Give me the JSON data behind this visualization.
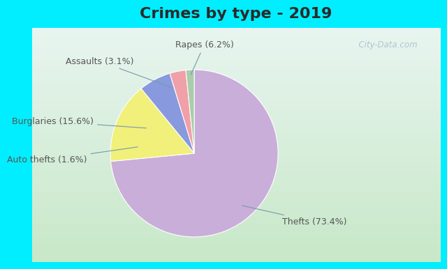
{
  "title": "Crimes by type - 2019",
  "labels": [
    "Thefts",
    "Burglaries",
    "Rapes",
    "Assaults",
    "Auto thefts"
  ],
  "values": [
    73.4,
    15.6,
    6.2,
    3.1,
    1.6
  ],
  "colors": [
    "#c9aed9",
    "#f0f07a",
    "#8899dd",
    "#f0a0a8",
    "#aaccaa"
  ],
  "label_texts": [
    "Thefts (73.4%)",
    "Burglaries (15.6%)",
    "Rapes (6.2%)",
    "Assaults (3.1%)",
    "Auto thefts (1.6%)"
  ],
  "bg_color_outer": "#00eeff",
  "bg_color_inner_top": "#e8f4f4",
  "bg_color_inner_bottom": "#d0eacc",
  "title_fontsize": 16,
  "label_fontsize": 9,
  "watermark": "  City-Data.com",
  "title_color": "#333333"
}
